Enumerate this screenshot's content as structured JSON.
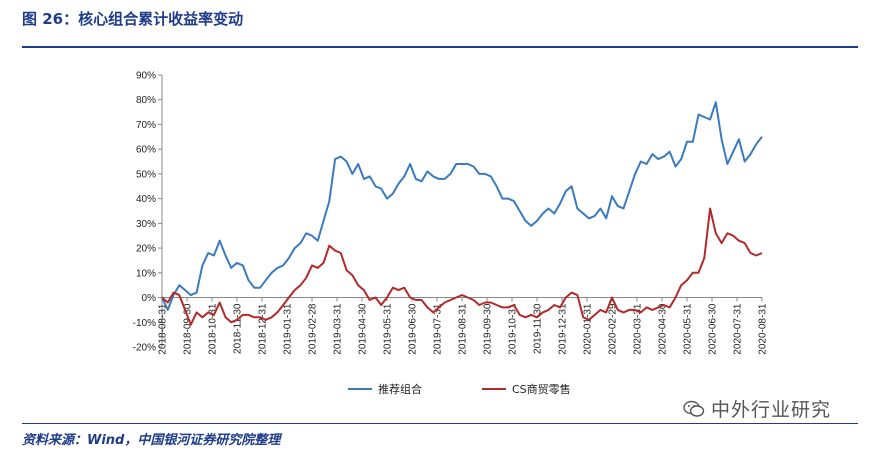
{
  "figure": {
    "title": "图 26：核心组合累计收益率变动",
    "source": "资料来源：Wind，中国银河证券研究院整理",
    "watermark": "中外行业研究"
  },
  "colors": {
    "header_rule": "#1f3c8a",
    "series_1": "#3a7bbf",
    "series_2": "#b22b2b"
  },
  "chart_data": {
    "type": "line",
    "title": "",
    "xlabel": "",
    "ylabel": "",
    "ylim": [
      -0.2,
      0.9
    ],
    "yticks": [
      "90%",
      "80%",
      "70%",
      "60%",
      "50%",
      "40%",
      "30%",
      "20%",
      "10%",
      "0%",
      "-10%",
      "-20%"
    ],
    "xtick_labels": [
      "2018-08-31",
      "2018-09-30",
      "2018-10-31",
      "2018-11-30",
      "2018-12-31",
      "2019-01-31",
      "2019-02-28",
      "2019-03-31",
      "2019-04-30",
      "2019-05-31",
      "2019-06-30",
      "2019-07-31",
      "2019-08-31",
      "2019-09-30",
      "2019-10-31",
      "2019-11-30",
      "2019-12-31",
      "2020-01-31",
      "2020-02-29",
      "2020-03-31",
      "2020-04-30",
      "2020-05-31",
      "2020-06-30",
      "2020-07-31",
      "2020-08-31"
    ],
    "legend_position": "bottom",
    "grid": false,
    "series": [
      {
        "name": "推荐组合",
        "values": [
          0.0,
          -0.05,
          0.01,
          0.05,
          0.03,
          0.01,
          0.02,
          0.13,
          0.18,
          0.17,
          0.23,
          0.17,
          0.12,
          0.14,
          0.13,
          0.07,
          0.04,
          0.04,
          0.07,
          0.1,
          0.12,
          0.13,
          0.16,
          0.2,
          0.22,
          0.26,
          0.25,
          0.23,
          0.31,
          0.39,
          0.56,
          0.57,
          0.55,
          0.5,
          0.54,
          0.48,
          0.49,
          0.45,
          0.44,
          0.4,
          0.42,
          0.46,
          0.49,
          0.54,
          0.48,
          0.47,
          0.51,
          0.49,
          0.48,
          0.48,
          0.5,
          0.54,
          0.54,
          0.54,
          0.53,
          0.5,
          0.5,
          0.49,
          0.45,
          0.4,
          0.4,
          0.39,
          0.35,
          0.31,
          0.29,
          0.31,
          0.34,
          0.36,
          0.34,
          0.38,
          0.43,
          0.45,
          0.36,
          0.34,
          0.32,
          0.33,
          0.36,
          0.32,
          0.41,
          0.37,
          0.36,
          0.43,
          0.5,
          0.55,
          0.54,
          0.58,
          0.56,
          0.57,
          0.59,
          0.53,
          0.56,
          0.63,
          0.63,
          0.74,
          0.73,
          0.72,
          0.79,
          0.64,
          0.54,
          0.59,
          0.64,
          0.55,
          0.58,
          0.62,
          0.65
        ]
      },
      {
        "name": "CS商贸零售",
        "values": [
          0.0,
          -0.02,
          0.02,
          0.01,
          -0.05,
          -0.11,
          -0.06,
          -0.08,
          -0.06,
          -0.07,
          -0.02,
          -0.08,
          -0.1,
          -0.09,
          -0.07,
          -0.07,
          -0.08,
          -0.08,
          -0.09,
          -0.08,
          -0.06,
          -0.03,
          0.0,
          0.03,
          0.05,
          0.08,
          0.13,
          0.12,
          0.14,
          0.21,
          0.19,
          0.18,
          0.11,
          0.09,
          0.05,
          0.03,
          -0.01,
          0.0,
          -0.03,
          0.0,
          0.04,
          0.03,
          0.04,
          0.0,
          -0.01,
          -0.01,
          -0.04,
          -0.06,
          -0.04,
          -0.02,
          -0.01,
          0.0,
          0.01,
          0.0,
          -0.01,
          -0.03,
          -0.02,
          -0.02,
          -0.03,
          -0.04,
          -0.04,
          -0.03,
          -0.07,
          -0.08,
          -0.07,
          -0.08,
          -0.06,
          -0.05,
          -0.03,
          -0.04,
          0.0,
          0.02,
          0.01,
          -0.08,
          -0.09,
          -0.07,
          -0.05,
          -0.06,
          0.0,
          -0.05,
          -0.06,
          -0.05,
          -0.05,
          -0.06,
          -0.04,
          -0.05,
          -0.04,
          -0.03,
          -0.04,
          0.0,
          0.05,
          0.07,
          0.1,
          0.1,
          0.16,
          0.36,
          0.26,
          0.22,
          0.26,
          0.25,
          0.23,
          0.22,
          0.18,
          0.17,
          0.18
        ]
      }
    ]
  }
}
